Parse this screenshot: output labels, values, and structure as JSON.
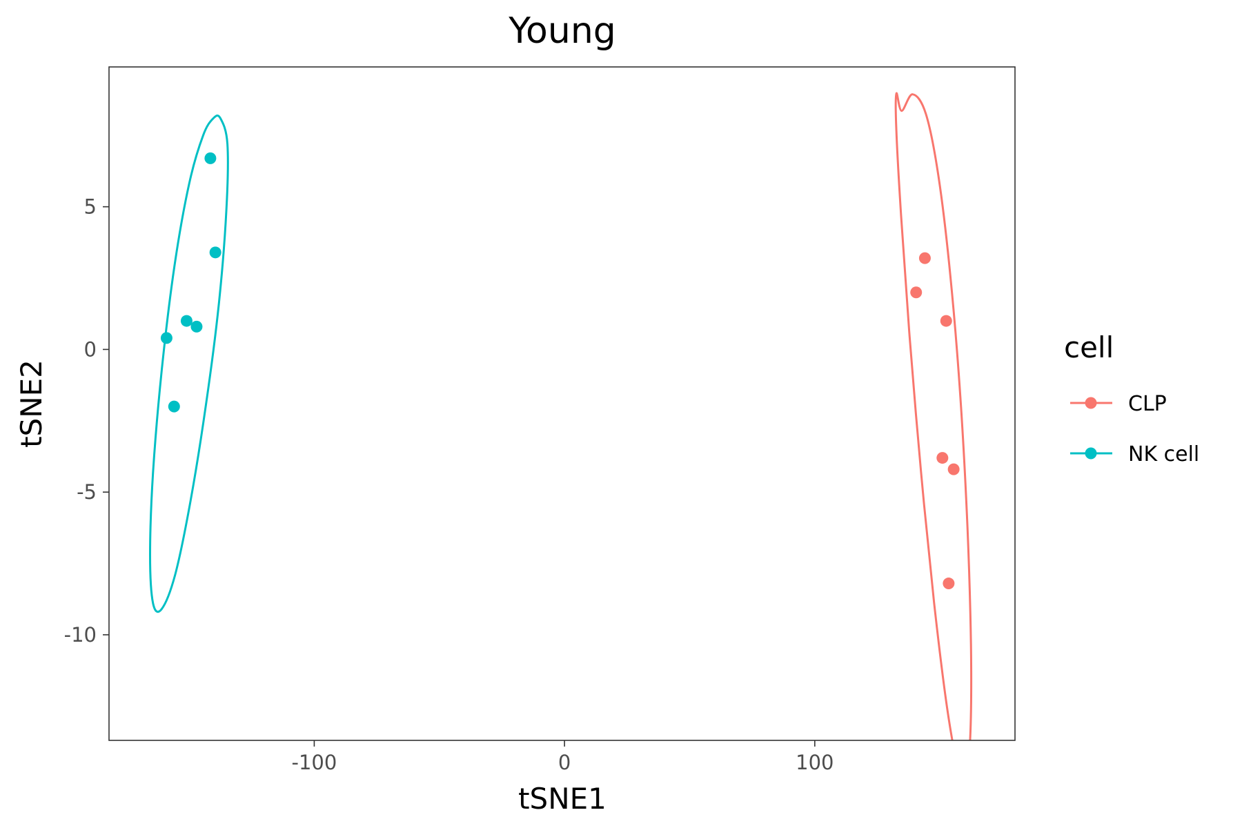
{
  "chart_data": {
    "type": "scatter",
    "title": "Young",
    "xlabel": "tSNE1",
    "ylabel": "tSNE2",
    "xlim": [
      -182,
      180
    ],
    "ylim": [
      -13.7,
      9.9
    ],
    "x_ticks": [
      -100,
      0,
      100
    ],
    "x_tick_labels": [
      "-100",
      "0",
      "100"
    ],
    "y_ticks": [
      5,
      0,
      -5,
      -10
    ],
    "y_tick_labels": [
      "5",
      "0",
      "-5",
      "-10"
    ],
    "grid": false,
    "ellipses": true,
    "legend": {
      "title": "cell",
      "placement": "right"
    },
    "series": [
      {
        "name": "CLP",
        "color": "#F8766D",
        "points": [
          [
            144,
            3.2
          ],
          [
            140.5,
            2.0
          ],
          [
            152.5,
            1.0
          ],
          [
            151,
            -3.8
          ],
          [
            155.5,
            -4.2
          ],
          [
            153.5,
            -8.2
          ]
        ],
        "ellipse_outline": [
          [
            139.1,
            8.94
          ],
          [
            144.4,
            8.25
          ],
          [
            149.5,
            6.02
          ],
          [
            154.2,
            2.56
          ],
          [
            158.2,
            -1.69
          ],
          [
            161.0,
            -6.21
          ],
          [
            162.4,
            -10.34
          ],
          [
            162.2,
            -13.43
          ],
          [
            160.4,
            -14.94
          ],
          [
            157.2,
            -14.63
          ],
          [
            152.8,
            -12.51
          ],
          [
            147.7,
            -8.89
          ],
          [
            142.5,
            -4.34
          ],
          [
            137.9,
            0.44
          ],
          [
            134.5,
            4.66
          ],
          [
            132.6,
            7.66
          ],
          [
            132.6,
            8.97
          ],
          [
            134.7,
            8.36
          ],
          [
            139.1,
            8.94
          ]
        ]
      },
      {
        "name": "NK cell",
        "color": "#00BFC4",
        "points": [
          [
            -141.5,
            6.7
          ],
          [
            -139.5,
            3.4
          ],
          [
            -151,
            1.0
          ],
          [
            -147,
            0.8
          ],
          [
            -159,
            0.4
          ],
          [
            -156,
            -2.0
          ]
        ],
        "ellipse_outline": [
          [
            -137.5,
            8.1
          ],
          [
            -134.7,
            7.2
          ],
          [
            -135.1,
            4.9
          ],
          [
            -138.1,
            1.6
          ],
          [
            -143.2,
            -1.9
          ],
          [
            -149.4,
            -5.3
          ],
          [
            -155.6,
            -7.9
          ],
          [
            -161.0,
            -9.1
          ],
          [
            -164.4,
            -8.9
          ],
          [
            -165.6,
            -7.2
          ],
          [
            -164.4,
            -4.3
          ],
          [
            -160.9,
            -0.7
          ],
          [
            -155.9,
            2.9
          ],
          [
            -150.0,
            5.8
          ],
          [
            -144.4,
            7.5
          ],
          [
            -140.3,
            8.1
          ],
          [
            -137.5,
            8.1
          ]
        ]
      }
    ]
  }
}
